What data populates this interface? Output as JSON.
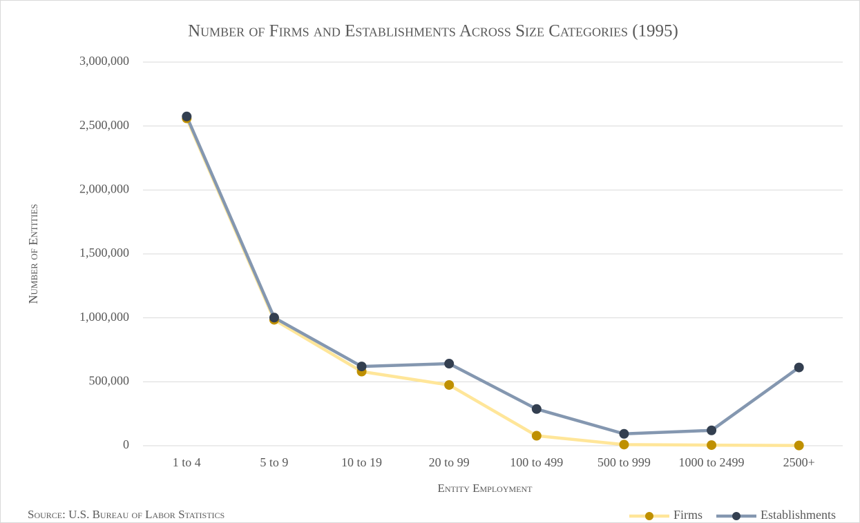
{
  "chart_data": {
    "type": "line",
    "title": "Number of Firms and Establishments Across Size Categories (1995)",
    "x_label": "Entity Employment",
    "y_label": "Number of Entities",
    "source": "Source: U.S. Bureau of Labor Statistics",
    "categories": [
      "1 to 4",
      "5 to 9",
      "10 to 19",
      "20 to 99",
      "100 to 499",
      "500 to 999",
      "1000 to 2499",
      "2500+"
    ],
    "series": [
      {
        "name": "Firms",
        "color": "#ffe699",
        "marker_color": "#bf9000",
        "values": [
          2560000,
          985000,
          580000,
          475000,
          78000,
          9000,
          5000,
          2000
        ]
      },
      {
        "name": "Establishments",
        "color": "#8497b0",
        "marker_color": "#333f50",
        "values": [
          2575000,
          1002000,
          620000,
          642000,
          287000,
          93000,
          120000,
          612000
        ]
      }
    ],
    "ylim": [
      0,
      3000000
    ],
    "yticks": [
      0,
      {
        "value": 500000,
        "label": "500,000"
      },
      {
        "value": 1000000,
        "label": "1,000,000"
      },
      {
        "value": 1500000,
        "label": "1,500,000"
      },
      {
        "value": 2000000,
        "label": "2,000,000"
      },
      {
        "value": 2500000,
        "label": "2,500,000"
      },
      {
        "value": 3000000,
        "label": "3,000,000"
      }
    ],
    "grid": true,
    "legend": "bottom-right"
  }
}
